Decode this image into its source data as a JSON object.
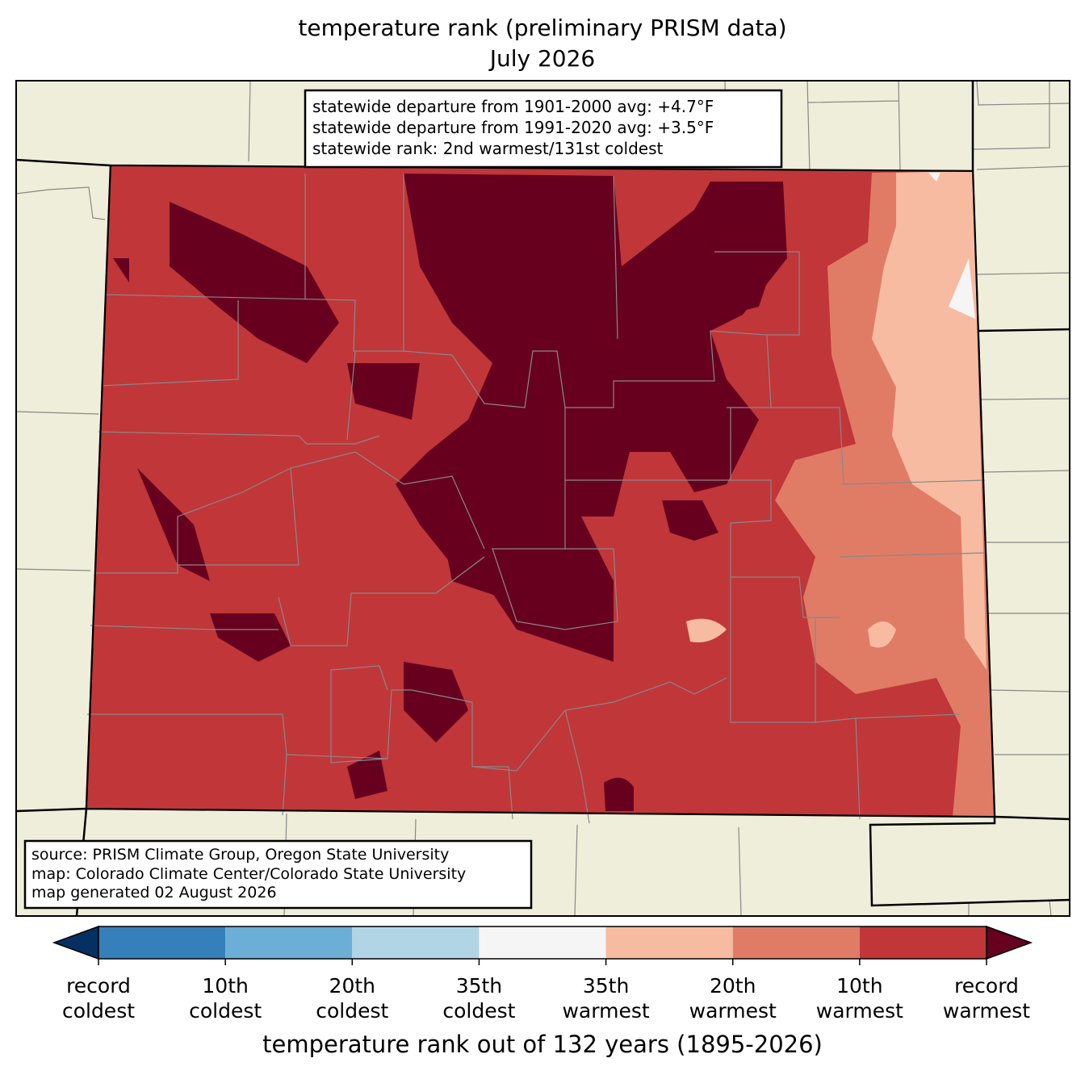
{
  "title": "temperature rank (preliminary PRISM data)",
  "subtitle": "July 2026",
  "stats_box": [
    "statewide departure from 1901-2000 avg: +4.7°F",
    "statewide departure from 1991-2020 avg: +3.5°F",
    "statewide rank: 2nd warmest/131st coldest"
  ],
  "source_box": [
    "source: PRISM Climate Group, Oregon State University",
    "map: Colorado Climate Center/Colorado State University",
    "map generated 02 August 2026"
  ],
  "colorbar": {
    "colors": [
      "#053061",
      "#3580bb",
      "#6baed6",
      "#b2d5e6",
      "#f5f5f5",
      "#f7bba2",
      "#e07c66",
      "#c13639",
      "#67001f"
    ],
    "labels": [
      [
        "record",
        "coldest"
      ],
      [
        "10th",
        "coldest"
      ],
      [
        "20th",
        "coldest"
      ],
      [
        "35th",
        "coldest"
      ],
      [
        "35th",
        "warmest"
      ],
      [
        "20th",
        "warmest"
      ],
      [
        "10th",
        "warmest"
      ],
      [
        "record",
        "warmest"
      ]
    ],
    "axis_label": "temperature rank out of 132 years (1895-2026)"
  }
}
